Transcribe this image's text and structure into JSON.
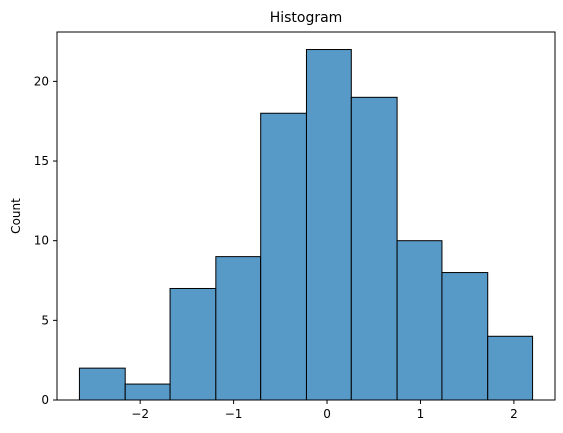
{
  "chart_data": {
    "type": "bar",
    "title": "Histogram",
    "xlabel": "",
    "ylabel": "Count",
    "bin_edges": [
      -2.65,
      -2.16,
      -1.68,
      -1.19,
      -0.71,
      -0.22,
      0.26,
      0.75,
      1.23,
      1.72,
      2.2
    ],
    "values": [
      2,
      1,
      7,
      9,
      18,
      22,
      19,
      10,
      8,
      4
    ],
    "xlim": [
      -2.89,
      2.44
    ],
    "ylim": [
      0,
      23.1
    ],
    "xticks": [
      {
        "value": -2,
        "label": "−2"
      },
      {
        "value": -1,
        "label": "−1"
      },
      {
        "value": 0,
        "label": "0"
      },
      {
        "value": 1,
        "label": "1"
      },
      {
        "value": 2,
        "label": "2"
      }
    ],
    "yticks": [
      {
        "value": 0,
        "label": "0"
      },
      {
        "value": 5,
        "label": "5"
      },
      {
        "value": 10,
        "label": "10"
      },
      {
        "value": 15,
        "label": "15"
      },
      {
        "value": 20,
        "label": "20"
      }
    ],
    "bar_color": "#5799c7",
    "edge_color": "#000000",
    "grid": false,
    "legend": "none"
  }
}
